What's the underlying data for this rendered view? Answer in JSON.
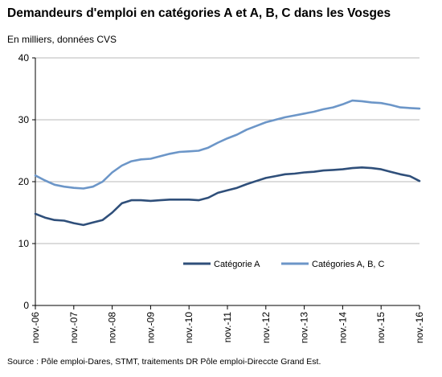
{
  "title": "Demandeurs d'emploi en catégories A et A, B, C dans les Vosges",
  "subtitle": "En milliers, données CVS",
  "source": "Source : Pôle emploi-Dares, STMT, traitements DR Pôle emploi-Direccte Grand Est.",
  "chart_data": {
    "type": "line",
    "title": "Demandeurs d'emploi en catégories A et A, B, C dans les Vosges",
    "xlabel": "",
    "ylabel": "",
    "ylim": [
      0,
      40
    ],
    "yticks": [
      0,
      10,
      20,
      30,
      40
    ],
    "xticks": [
      "nov.-06",
      "nov.-07",
      "nov.-08",
      "nov.-09",
      "nov.-10",
      "nov.-11",
      "nov.-12",
      "nov.-13",
      "nov.-14",
      "nov.-15",
      "nov.-16"
    ],
    "grid": "horizontal",
    "legend_position": "bottom-right",
    "series": [
      {
        "name": "Catégorie A",
        "color": "#2f4f7a",
        "x": [
          "nov.-06",
          "feb.-07",
          "may-07",
          "aug.-07",
          "nov.-07",
          "feb.-08",
          "may-08",
          "aug.-08",
          "nov.-08",
          "feb.-09",
          "may-09",
          "aug.-09",
          "nov.-09",
          "feb.-10",
          "may-10",
          "aug.-10",
          "nov.-10",
          "feb.-11",
          "may-11",
          "aug.-11",
          "nov.-11",
          "feb.-12",
          "may-12",
          "aug.-12",
          "nov.-12",
          "feb.-13",
          "may-13",
          "aug.-13",
          "nov.-13",
          "feb.-14",
          "may-14",
          "aug.-14",
          "nov.-14",
          "feb.-15",
          "may-15",
          "aug.-15",
          "nov.-15",
          "feb.-16",
          "may-16",
          "aug.-16",
          "nov.-16"
        ],
        "values": [
          14.8,
          14.2,
          13.8,
          13.7,
          13.3,
          13.0,
          13.4,
          13.8,
          15.0,
          16.5,
          17.0,
          17.0,
          16.9,
          17.0,
          17.1,
          17.1,
          17.1,
          17.0,
          17.4,
          18.2,
          18.6,
          19.0,
          19.6,
          20.1,
          20.6,
          20.9,
          21.2,
          21.3,
          21.5,
          21.6,
          21.8,
          21.9,
          22.0,
          22.2,
          22.3,
          22.2,
          22.0,
          21.6,
          21.2,
          20.9,
          20.1
        ]
      },
      {
        "name": "Catégories A, B, C",
        "color": "#6c96c8",
        "x": [
          "nov.-06",
          "feb.-07",
          "may-07",
          "aug.-07",
          "nov.-07",
          "feb.-08",
          "may-08",
          "aug.-08",
          "nov.-08",
          "feb.-09",
          "may-09",
          "aug.-09",
          "nov.-09",
          "feb.-10",
          "may-10",
          "aug.-10",
          "nov.-10",
          "feb.-11",
          "may-11",
          "aug.-11",
          "nov.-11",
          "feb.-12",
          "may-12",
          "aug.-12",
          "nov.-12",
          "feb.-13",
          "may-13",
          "aug.-13",
          "nov.-13",
          "feb.-14",
          "may-14",
          "aug.-14",
          "nov.-14",
          "feb.-15",
          "may-15",
          "aug.-15",
          "nov.-15",
          "feb.-16",
          "may-16",
          "aug.-16",
          "nov.-16"
        ],
        "values": [
          21.0,
          20.2,
          19.5,
          19.2,
          19.0,
          18.9,
          19.2,
          20.0,
          21.5,
          22.6,
          23.3,
          23.6,
          23.7,
          24.1,
          24.5,
          24.8,
          24.9,
          25.0,
          25.5,
          26.3,
          27.0,
          27.6,
          28.4,
          29.0,
          29.6,
          30.0,
          30.4,
          30.7,
          31.0,
          31.3,
          31.7,
          32.0,
          32.5,
          33.1,
          33.0,
          32.8,
          32.7,
          32.4,
          32.0,
          31.9,
          31.8
        ]
      }
    ]
  }
}
